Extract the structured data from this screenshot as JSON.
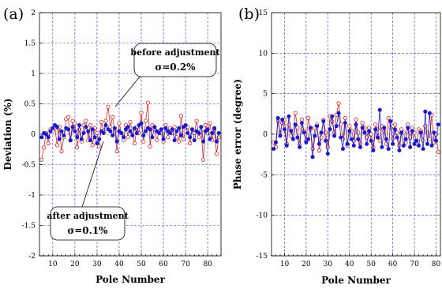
{
  "chart_data": [
    {
      "type": "line",
      "panel_label": "(a)",
      "xlabel": "Pole Number",
      "ylabel": "Deviation (%)",
      "xlim": [
        4,
        86
      ],
      "ylim": [
        -2,
        2
      ],
      "xticks": [
        10,
        20,
        30,
        40,
        50,
        60,
        70,
        80
      ],
      "yticks": [
        -2,
        -1.5,
        -1,
        -0.5,
        0,
        0.5,
        1,
        1.5,
        2
      ],
      "ytick_labels": [
        "-2",
        "-1.5",
        "-1",
        "-0.5",
        "0",
        "0.5",
        "1",
        "1.5",
        "2"
      ],
      "grid": true,
      "series": [
        {
          "marker": "open-circle",
          "color": "#e02020",
          "x": [
            5,
            6,
            7,
            8,
            9,
            10,
            11,
            12,
            13,
            14,
            15,
            16,
            17,
            18,
            19,
            20,
            21,
            22,
            23,
            24,
            25,
            26,
            27,
            28,
            29,
            30,
            31,
            32,
            33,
            34,
            35,
            36,
            37,
            38,
            39,
            40,
            41,
            42,
            43,
            44,
            45,
            46,
            47,
            48,
            49,
            50,
            51,
            52,
            53,
            54,
            55,
            56,
            57,
            58,
            59,
            60,
            61,
            62,
            63,
            64,
            65,
            66,
            67,
            68,
            69,
            70,
            71,
            72,
            73,
            74,
            75,
            76,
            77,
            78,
            79,
            80,
            81,
            82,
            83,
            84,
            85
          ],
          "y": [
            -0.42,
            -0.22,
            0.02,
            -0.15,
            0.08,
            0.05,
            0.1,
            -0.18,
            0.12,
            -0.28,
            -0.05,
            0.25,
            0.28,
            -0.1,
            0.22,
            0.18,
            -0.22,
            0.08,
            -0.12,
            0.15,
            0.22,
            -0.1,
            0.15,
            -0.18,
            0.1,
            0.02,
            -0.2,
            0.2,
            0.05,
            0.22,
            0.45,
            0.12,
            0.28,
            0.05,
            -0.28,
            0.18,
            0.02,
            -0.1,
            0.15,
            -0.05,
            0.2,
            0.05,
            -0.15,
            0.12,
            0.02,
            0.35,
            -0.12,
            0.22,
            0.52,
            -0.2,
            0.15,
            0.08,
            -0.1,
            0.05,
            0.02,
            -0.12,
            0.15,
            -0.05,
            0.1,
            0.02,
            0.12,
            -0.05,
            -0.12,
            0.3,
            -0.08,
            0.05,
            0.12,
            -0.15,
            0.08,
            0.02,
            0.22,
            -0.05,
            0.05,
            -0.42,
            0.15,
            0.02,
            0.18,
            -0.1,
            0.08,
            -0.32,
            -0.05
          ]
        },
        {
          "marker": "filled-circle",
          "color": "#1a1acc",
          "x": [
            5,
            6,
            7,
            8,
            9,
            10,
            11,
            12,
            13,
            14,
            15,
            16,
            17,
            18,
            19,
            20,
            21,
            22,
            23,
            24,
            25,
            26,
            27,
            28,
            29,
            30,
            31,
            32,
            33,
            34,
            35,
            36,
            37,
            38,
            39,
            40,
            41,
            42,
            43,
            44,
            45,
            46,
            47,
            48,
            49,
            50,
            51,
            52,
            53,
            54,
            55,
            56,
            57,
            58,
            59,
            60,
            61,
            62,
            63,
            64,
            65,
            66,
            67,
            68,
            69,
            70,
            71,
            72,
            73,
            74,
            75,
            76,
            77,
            78,
            79,
            80,
            81,
            82,
            83,
            84,
            85
          ],
          "y": [
            -0.05,
            0.02,
            0,
            -0.05,
            0.05,
            0.1,
            0.15,
            0.12,
            -0.08,
            0.05,
            -0.02,
            0.1,
            0.08,
            -0.1,
            0.12,
            0.05,
            -0.05,
            0.15,
            -0.08,
            0.02,
            0.12,
            0.05,
            -0.1,
            0.08,
            -0.05,
            -0.15,
            -0.08,
            0.05,
            0.02,
            0.15,
            0.08,
            0.05,
            -0.02,
            0.1,
            -0.12,
            0.05,
            0.02,
            -0.05,
            0.08,
            0.12,
            0.05,
            -0.02,
            0.1,
            0.02,
            0.15,
            0.18,
            -0.02,
            0.05,
            0.1,
            0.08,
            -0.05,
            0.12,
            0.05,
            0.02,
            0.08,
            -0.08,
            0.1,
            0.05,
            0.02,
            0.08,
            -0.1,
            0.05,
            0.1,
            -0.02,
            0.12,
            0.15,
            0.02,
            -0.05,
            0.08,
            -0.1,
            0.05,
            0.02,
            0.12,
            -0.12,
            0.05,
            0.08,
            -0.08,
            0.02,
            0.1,
            -0.12,
            0.02
          ]
        }
      ],
      "annotations": [
        {
          "text": "before adjustment",
          "sigma": "σ=0.2%"
        },
        {
          "text": "after adjustment",
          "sigma": "σ=0.1%"
        }
      ]
    },
    {
      "type": "line",
      "panel_label": "(b)",
      "xlabel": "Pole Number",
      "ylabel": "Phase error (degree)",
      "xlim": [
        4,
        82
      ],
      "ylim": [
        -15,
        15
      ],
      "xticks": [
        10,
        20,
        30,
        40,
        50,
        60,
        70,
        80
      ],
      "yticks": [
        -15,
        -10,
        -5,
        0,
        5,
        10,
        15
      ],
      "ytick_labels": [
        "-15",
        "-10",
        "-5",
        "0",
        "5",
        "10",
        "15"
      ],
      "grid": true,
      "series": [
        {
          "marker": "open-circle",
          "color": "#e02020",
          "x": [
            5,
            6,
            7,
            8,
            9,
            10,
            11,
            12,
            13,
            14,
            15,
            16,
            17,
            18,
            19,
            20,
            21,
            22,
            23,
            24,
            25,
            26,
            27,
            28,
            29,
            30,
            31,
            32,
            33,
            34,
            35,
            36,
            37,
            38,
            39,
            40,
            41,
            42,
            43,
            44,
            45,
            46,
            47,
            48,
            49,
            50,
            51,
            52,
            53,
            54,
            55,
            56,
            57,
            58,
            59,
            60,
            61,
            62,
            63,
            64,
            65,
            66,
            67,
            68,
            69,
            70,
            71,
            72,
            73,
            74,
            75,
            76,
            77,
            78,
            79,
            80,
            81
          ],
          "y": [
            -1,
            -1.6,
            1.6,
            0.2,
            1.4,
            1.8,
            -1.2,
            1.2,
            -0.2,
            0.4,
            2.6,
            0.8,
            -1.2,
            1.8,
            0.4,
            -0.8,
            2,
            0.6,
            -1.8,
            0.8,
            1.2,
            -2,
            -0.4,
            1.8,
            0.2,
            -1.6,
            2.2,
            1.6,
            0.2,
            2.4,
            3.8,
            1.2,
            -0.6,
            2,
            -1.4,
            1,
            0.4,
            -0.8,
            1.8,
            0.2,
            -1.2,
            1.4,
            0.8,
            -0.4,
            0.8,
            0,
            -1.6,
            1.2,
            0.6,
            -0.8,
            1,
            0.4,
            -1.2,
            2,
            0.8,
            -0.6,
            1.2,
            0.2,
            -1.4,
            0.6,
            0.2,
            -1,
            1.2,
            -0.4,
            0.8,
            0.2,
            -1.2,
            0.6,
            0.4,
            -0.8,
            1,
            0.2,
            -0.6,
            2.4,
            -1,
            0,
            -2.2
          ]
        },
        {
          "marker": "filled-circle",
          "color": "#1a1acc",
          "x": [
            5,
            6,
            7,
            8,
            9,
            10,
            11,
            12,
            13,
            14,
            15,
            16,
            17,
            18,
            19,
            20,
            21,
            22,
            23,
            24,
            25,
            26,
            27,
            28,
            29,
            30,
            31,
            32,
            33,
            34,
            35,
            36,
            37,
            38,
            39,
            40,
            41,
            42,
            43,
            44,
            45,
            46,
            47,
            48,
            49,
            50,
            51,
            52,
            53,
            54,
            55,
            56,
            57,
            58,
            59,
            60,
            61,
            62,
            63,
            64,
            65,
            66,
            67,
            68,
            69,
            70,
            71,
            72,
            73,
            74,
            75,
            76,
            77,
            78,
            79,
            80,
            81
          ],
          "y": [
            -1.8,
            -1,
            2,
            -0.2,
            1.8,
            0.6,
            -1.4,
            2.2,
            0.4,
            -0.6,
            1.2,
            -0.4,
            -1.6,
            1.4,
            0.2,
            -1,
            -0.6,
            0.8,
            -2.8,
            -0.2,
            1,
            -1.2,
            0.2,
            1.6,
            -0.8,
            -2.4,
            0.6,
            2.2,
            -0.2,
            1,
            2.6,
            -0.4,
            -1.8,
            1.4,
            -1.2,
            0.4,
            -0.6,
            -1.4,
            1.2,
            -0.6,
            -1.6,
            0.8,
            0.2,
            -1.2,
            0.4,
            -0.8,
            -2,
            0.6,
            -0.4,
            3,
            -1.6,
            0.8,
            -0.6,
            -1.8,
            1.6,
            -1.2,
            0.6,
            -0.4,
            -2,
            0.2,
            -1.4,
            -0.6,
            0.8,
            -1.6,
            0.4,
            -1.2,
            -0.8,
            -1.4,
            0.2,
            -1.8,
            2.8,
            -1.2,
            2.6,
            -1.4,
            0.2,
            -0.8,
            1.2
          ]
        }
      ]
    }
  ]
}
